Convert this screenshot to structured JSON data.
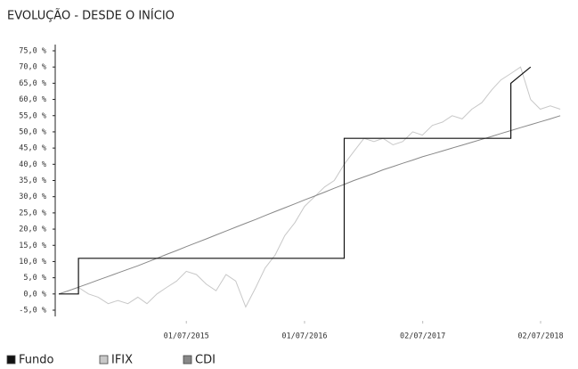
{
  "chart_data": {
    "type": "line",
    "title": "EVOLUÇÃO - DESDE O INÍCIO",
    "x": [
      "01/06/2014",
      "01/07/2014",
      "01/08/2014",
      "01/09/2014",
      "01/10/2014",
      "01/11/2014",
      "01/12/2014",
      "01/01/2015",
      "01/02/2015",
      "01/03/2015",
      "01/04/2015",
      "01/05/2015",
      "01/06/2015",
      "01/07/2015",
      "01/08/2015",
      "01/09/2015",
      "01/10/2015",
      "01/11/2015",
      "01/12/2015",
      "01/01/2016",
      "01/02/2016",
      "01/03/2016",
      "01/04/2016",
      "01/05/2016",
      "01/06/2016",
      "01/07/2016",
      "01/08/2016",
      "01/09/2016",
      "01/10/2016",
      "01/11/2016",
      "01/12/2016",
      "01/01/2017",
      "01/02/2017",
      "01/03/2017",
      "01/04/2017",
      "01/05/2017",
      "01/06/2017",
      "01/07/2017",
      "01/08/2017",
      "01/09/2017",
      "01/10/2017",
      "01/11/2017",
      "01/12/2017",
      "01/01/2018",
      "01/02/2018",
      "01/03/2018",
      "01/04/2018",
      "01/05/2018",
      "01/06/2018",
      "01/07/2018",
      "01/08/2018",
      "01/09/2018"
    ],
    "series": [
      {
        "name": "Fundo",
        "color": "#111111",
        "x": [
          "01/06/2014",
          "01/08/2014",
          "01/08/2014",
          "01/11/2016",
          "01/11/2016",
          "01/04/2018",
          "01/04/2018",
          "01/06/2018"
        ],
        "values": [
          0,
          0,
          11,
          11,
          48,
          48,
          65,
          70
        ]
      },
      {
        "name": "IFIX",
        "color": "#c8c8c8",
        "values": [
          0,
          1,
          2,
          0,
          -1,
          -3,
          -2,
          -3,
          -1,
          -3,
          0,
          2,
          4,
          7,
          6,
          3,
          1,
          6,
          4,
          -4,
          2,
          8,
          12,
          18,
          22,
          27,
          30,
          33,
          35,
          40,
          44,
          48,
          47,
          48,
          46,
          47,
          50,
          49,
          52,
          53,
          55,
          54,
          57,
          59,
          63,
          66,
          68,
          70,
          60,
          57,
          58,
          57
        ]
      },
      {
        "name": "CDI",
        "color": "#888888",
        "values": [
          0,
          1,
          2.1,
          3.2,
          4.3,
          5.4,
          6.5,
          7.6,
          8.7,
          9.8,
          11,
          12.2,
          13.4,
          14.6,
          15.8,
          17,
          18.2,
          19.4,
          20.6,
          21.8,
          23,
          24.2,
          25.4,
          26.6,
          27.8,
          29,
          30.2,
          31.4,
          32.6,
          33.8,
          35,
          36.1,
          37.2,
          38.3,
          39.3,
          40.3,
          41.3,
          42.3,
          43.2,
          44.1,
          45,
          45.9,
          46.8,
          47.7,
          48.6,
          49.5,
          50.4,
          51.3,
          52.2,
          53.1,
          54,
          55
        ]
      }
    ],
    "xlim": [
      "01/06/2014",
      "01/10/2018"
    ],
    "xticks": [
      "01/07/2015",
      "01/07/2016",
      "02/07/2017",
      "02/07/2018"
    ],
    "ylim": [
      -5,
      75
    ],
    "yticks": [
      {
        "value": -5,
        "label": "-5,0 %"
      },
      {
        "value": 0,
        "label": "0,0 %"
      },
      {
        "value": 5,
        "label": "5,0 %"
      },
      {
        "value": 10,
        "label": "10,0 %"
      },
      {
        "value": 15,
        "label": "15,0 %"
      },
      {
        "value": 20,
        "label": "20,0 %"
      },
      {
        "value": 25,
        "label": "25,0 %"
      },
      {
        "value": 30,
        "label": "30,0 %"
      },
      {
        "value": 35,
        "label": "35,0 %"
      },
      {
        "value": 40,
        "label": "40,0 %"
      },
      {
        "value": 45,
        "label": "45,0 %"
      },
      {
        "value": 50,
        "label": "50,0 %"
      },
      {
        "value": 55,
        "label": "55,0 %"
      },
      {
        "value": 60,
        "label": "60,0 %"
      },
      {
        "value": 65,
        "label": "65,0 %"
      },
      {
        "value": 70,
        "label": "70,0 %"
      },
      {
        "value": 75,
        "label": "75,0 %"
      }
    ],
    "legend": "bottom"
  }
}
